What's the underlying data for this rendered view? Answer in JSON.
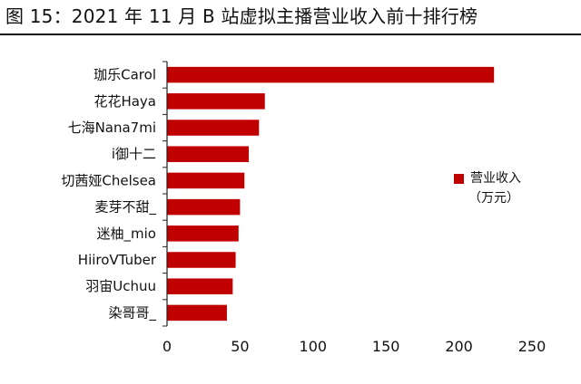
{
  "title": "图 15：2021 年 11 月 B 站虚拟主播营业收入前十排行榜",
  "colors": {
    "bar": "#c00000",
    "axis": "#222222",
    "text": "#111111"
  },
  "chart_data": {
    "type": "bar",
    "orientation": "horizontal",
    "categories": [
      "珈乐Carol",
      "花花Haya",
      "七海Nana7mi",
      "i御十二",
      "切茜娅Chelsea",
      "麦芽不甜_",
      "迷柚_mio",
      "HiiroVTuber",
      "羽宙Uchuu",
      "染哥哥_"
    ],
    "series": [
      {
        "name": "营业收入",
        "values": [
          224,
          67,
          63,
          56,
          53,
          50,
          49,
          47,
          45,
          41
        ]
      }
    ],
    "xlim": [
      0,
      250
    ],
    "xticks": [
      "0",
      "50",
      "100",
      "150",
      "200",
      "250"
    ],
    "legend": {
      "label": "营业收入",
      "unit": "（万元）",
      "position": "right"
    },
    "grid": false
  }
}
